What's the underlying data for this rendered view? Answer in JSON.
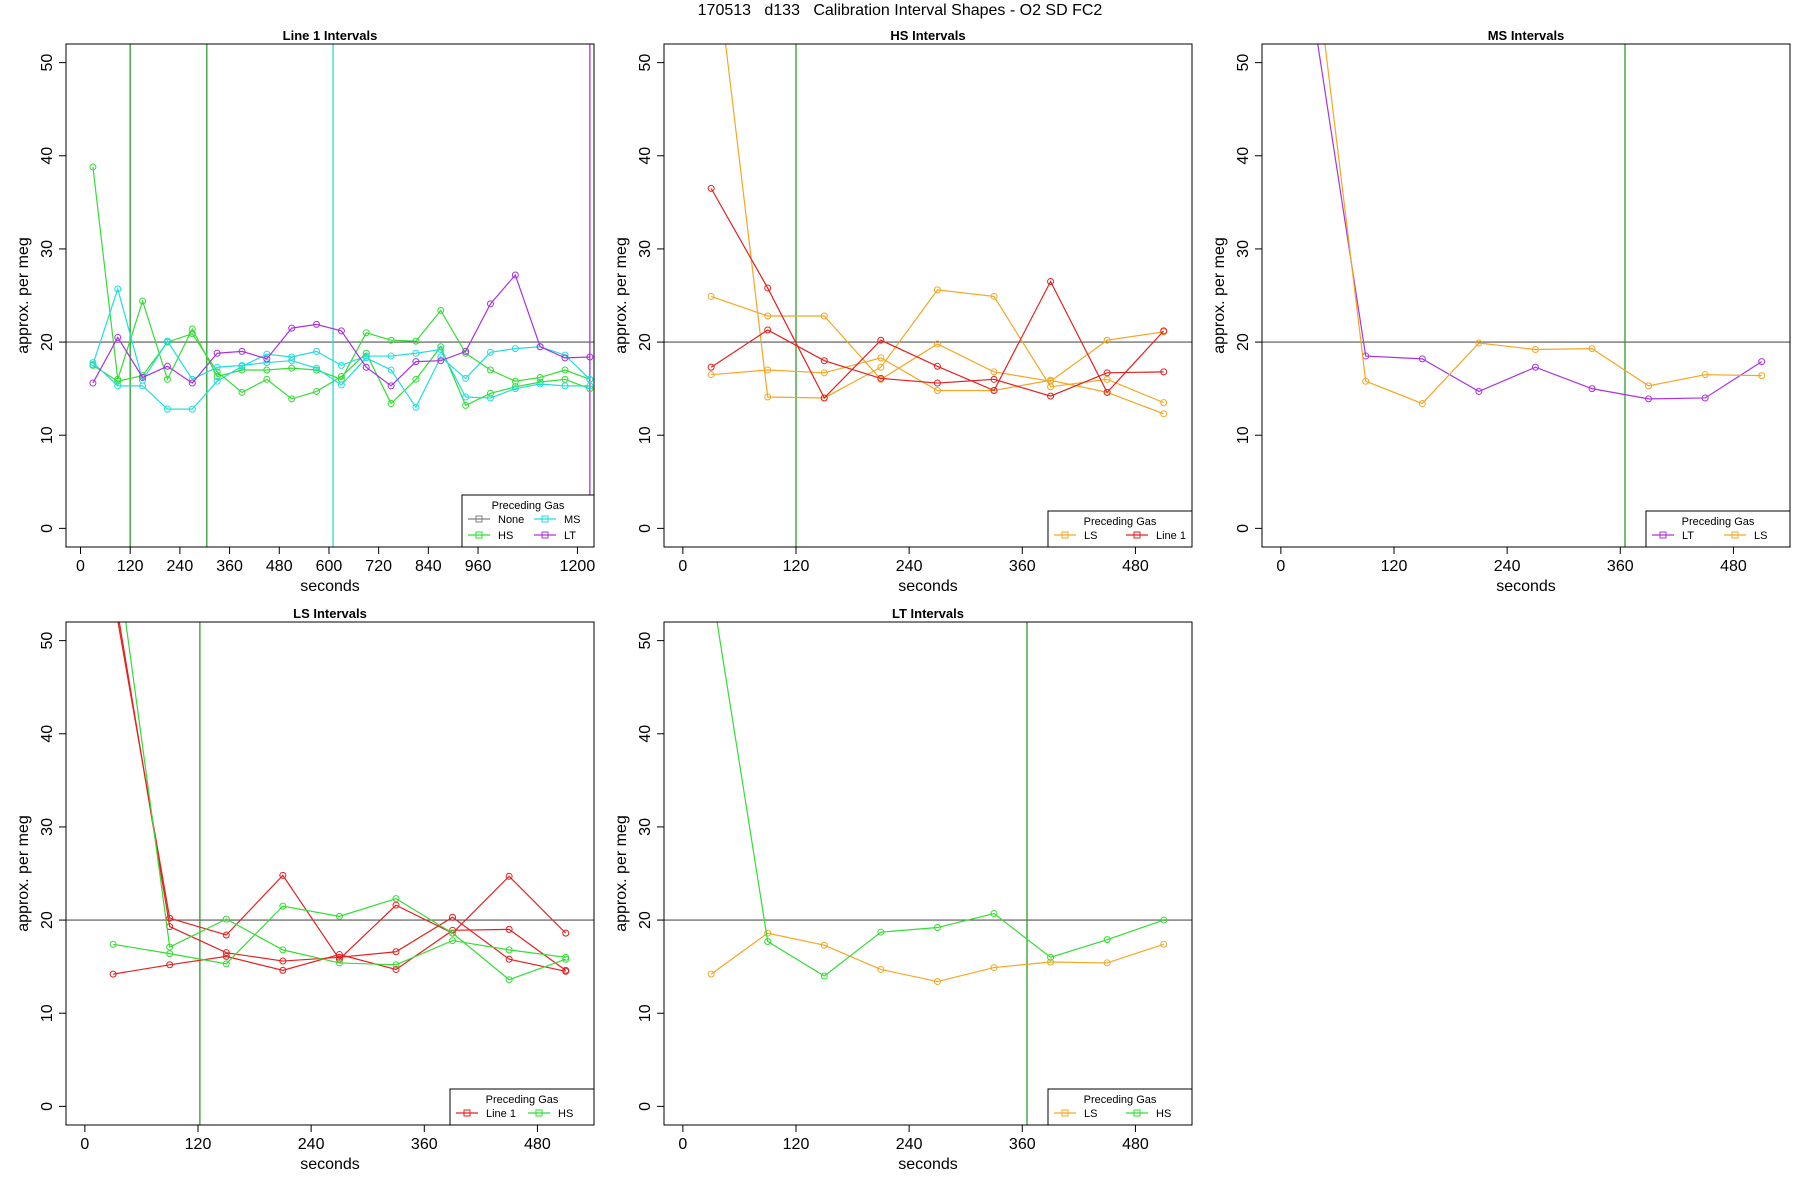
{
  "title": "170513   d133   Calibration Interval Shapes - O2 SD FC2",
  "colors": {
    "None": "#808080",
    "HS": "#33dd33",
    "MS": "#22dddd",
    "LT": "#aa33dd",
    "LS": "#f5a623",
    "Line 1": "#e62020",
    "ref": "#000000"
  },
  "chart_data": [
    {
      "type": "line",
      "title": "Line 1 Intervals",
      "xlabel": "seconds",
      "ylabel": "approx. per meg",
      "xlim": [
        -35,
        1240
      ],
      "ylim": [
        -2,
        52
      ],
      "xticks": [
        0,
        120,
        240,
        360,
        480,
        600,
        720,
        840,
        960,
        1200
      ],
      "yticks": [
        0,
        10,
        20,
        30,
        40,
        50
      ],
      "hline": 20,
      "vlines": [
        {
          "x": 120,
          "gas": "HS"
        },
        {
          "x": 305,
          "gas": "HS"
        },
        {
          "x": 610,
          "gas": "MS"
        },
        {
          "x": 1230,
          "gas": "LT"
        }
      ],
      "legend": {
        "title": "Preceding Gas",
        "entries": [
          "None",
          "MS",
          "HS",
          "LT"
        ],
        "cols": 2
      },
      "series": [
        {
          "name": "HS",
          "x": [
            30,
            90,
            150,
            210,
            270,
            330,
            390,
            450,
            510,
            570,
            630,
            690,
            750,
            810,
            870,
            930,
            990,
            1050,
            1110,
            1170,
            1230
          ],
          "y": [
            38.8,
            16.0,
            24.4,
            16.0,
            21.4,
            16.3,
            17.0,
            17.0,
            17.2,
            17.0,
            16.0,
            21.0,
            20.2,
            20.1,
            23.4,
            18.8,
            17.0,
            15.8,
            16.2,
            17.0,
            16.0
          ]
        },
        {
          "name": "HS",
          "x": [
            30,
            90,
            150,
            210,
            270,
            330,
            390,
            450,
            510,
            570,
            630,
            690,
            750,
            810,
            870,
            930,
            990,
            1050,
            1110,
            1170,
            1230
          ],
          "y": [
            17.5,
            15.8,
            16.4,
            20.0,
            20.9,
            16.8,
            14.6,
            16.0,
            13.9,
            14.7,
            16.3,
            18.8,
            13.4,
            16.0,
            19.5,
            13.2,
            14.5,
            15.2,
            15.7,
            16.0,
            15.0
          ]
        },
        {
          "name": "MS",
          "x": [
            30,
            90,
            150,
            210,
            270,
            330,
            390,
            450,
            510,
            570,
            630,
            690,
            750,
            810,
            870,
            930,
            990,
            1050,
            1110,
            1170,
            1230
          ],
          "y": [
            17.6,
            25.7,
            15.9,
            20.1,
            16.0,
            17.3,
            17.5,
            17.8,
            18.0,
            17.2,
            15.4,
            18.3,
            17.0,
            13.0,
            18.4,
            16.1,
            18.9,
            19.3,
            19.5,
            18.6,
            16.0
          ]
        },
        {
          "name": "MS",
          "x": [
            30,
            90,
            150,
            210,
            270,
            330,
            390,
            450,
            510,
            570,
            630,
            690,
            750,
            810,
            870,
            930,
            990,
            1050,
            1110,
            1170,
            1230
          ],
          "y": [
            17.8,
            15.3,
            15.3,
            12.8,
            12.8,
            15.8,
            17.4,
            18.7,
            18.4,
            19.0,
            17.5,
            18.5,
            18.5,
            18.8,
            19.2,
            14.1,
            14.0,
            15.0,
            15.5,
            15.3,
            15.3
          ]
        },
        {
          "name": "LT",
          "x": [
            30,
            90,
            150,
            210,
            270,
            330,
            390,
            450,
            510,
            570,
            630,
            690,
            750,
            810,
            870,
            930,
            990,
            1050,
            1110,
            1170,
            1230
          ],
          "y": [
            15.6,
            20.5,
            16.2,
            17.4,
            15.6,
            18.8,
            19.0,
            18.2,
            21.5,
            21.9,
            21.2,
            17.3,
            15.3,
            17.9,
            18.0,
            19.0,
            24.1,
            27.2,
            19.5,
            18.3,
            18.4
          ]
        }
      ]
    },
    {
      "type": "line",
      "title": "HS Intervals",
      "xlabel": "seconds",
      "ylabel": "approx. per meg",
      "xlim": [
        -20,
        540
      ],
      "ylim": [
        -2,
        52
      ],
      "xticks": [
        0,
        120,
        240,
        360,
        480
      ],
      "yticks": [
        0,
        10,
        20,
        30,
        40,
        50
      ],
      "hline": 20,
      "vlines": [
        {
          "x": 120,
          "gas": "HS"
        }
      ],
      "legend": {
        "title": "Preceding Gas",
        "entries": [
          "LS",
          "Line 1"
        ],
        "cols": 2
      },
      "series": [
        {
          "name": "LS",
          "x": [
            30,
            90,
            150,
            210,
            270,
            330,
            390,
            450,
            510
          ],
          "y": [
            65,
            14.1,
            14.0,
            17.3,
            25.6,
            24.9,
            15.2,
            16.0,
            13.5
          ]
        },
        {
          "name": "LS",
          "x": [
            30,
            90,
            150,
            210,
            270,
            330,
            390,
            450,
            510
          ],
          "y": [
            24.9,
            22.8,
            22.8,
            16.0,
            19.8,
            16.8,
            15.8,
            20.2,
            21.1
          ]
        },
        {
          "name": "LS",
          "x": [
            30,
            90,
            150,
            210,
            270,
            330,
            390,
            450,
            510
          ],
          "y": [
            16.5,
            17.0,
            16.7,
            18.3,
            14.8,
            14.8,
            15.9,
            14.6,
            12.3
          ]
        },
        {
          "name": "Line 1",
          "x": [
            30,
            90,
            150,
            210,
            270,
            330,
            390,
            450,
            510
          ],
          "y": [
            36.5,
            25.8,
            14.0,
            20.2,
            17.4,
            14.8,
            26.5,
            14.6,
            21.2
          ]
        },
        {
          "name": "Line 1",
          "x": [
            30,
            90,
            150,
            210,
            270,
            330,
            390,
            450,
            510
          ],
          "y": [
            17.3,
            21.3,
            18.0,
            16.1,
            15.6,
            16.0,
            14.2,
            16.7,
            16.8
          ]
        }
      ]
    },
    {
      "type": "line",
      "title": "MS Intervals",
      "xlabel": "seconds",
      "ylabel": "approx. per meg",
      "xlim": [
        -20,
        540
      ],
      "ylim": [
        -2,
        52
      ],
      "xticks": [
        0,
        120,
        240,
        360,
        480
      ],
      "yticks": [
        0,
        10,
        20,
        30,
        40,
        50
      ],
      "hline": 20,
      "vlines": [
        {
          "x": 365,
          "gas": "HS"
        }
      ],
      "legend": {
        "title": "Preceding Gas",
        "entries": [
          "LT",
          "LS"
        ],
        "cols": 2
      },
      "series": [
        {
          "name": "LT",
          "x": [
            30,
            90,
            150,
            210,
            270,
            330,
            390,
            450,
            510
          ],
          "y": [
            58,
            18.5,
            18.2,
            14.7,
            17.3,
            15.0,
            13.9,
            14.0,
            17.9
          ]
        },
        {
          "name": "LS",
          "x": [
            30,
            90,
            150,
            210,
            270,
            330,
            390,
            450,
            510
          ],
          "y": [
            66,
            15.8,
            13.4,
            19.9,
            19.2,
            19.3,
            15.3,
            16.5,
            16.4
          ]
        }
      ]
    },
    {
      "type": "line",
      "title": "LS Intervals",
      "xlabel": "seconds",
      "ylabel": "approx. per meg",
      "xlim": [
        -20,
        540
      ],
      "ylim": [
        -2,
        52
      ],
      "xticks": [
        0,
        120,
        240,
        360,
        480
      ],
      "yticks": [
        0,
        10,
        20,
        30,
        40,
        50
      ],
      "hline": 20,
      "vlines": [
        {
          "x": 122,
          "gas": "HS"
        }
      ],
      "legend": {
        "title": "Preceding Gas",
        "entries": [
          "Line 1",
          "HS"
        ],
        "cols": 2
      },
      "series": [
        {
          "name": "Line 1",
          "x": [
            30,
            90,
            150,
            210,
            270,
            330,
            390,
            450,
            510
          ],
          "y": [
            55,
            20.2,
            18.4,
            24.8,
            15.8,
            21.6,
            18.6,
            24.7,
            18.6
          ]
        },
        {
          "name": "Line 1",
          "x": [
            30,
            90,
            150,
            210,
            270,
            330,
            390,
            450,
            510
          ],
          "y": [
            56,
            19.3,
            16.5,
            15.6,
            16.0,
            16.6,
            20.3,
            15.8,
            14.5
          ]
        },
        {
          "name": "Line 1",
          "x": [
            30,
            90,
            150,
            210,
            270,
            330,
            390,
            450,
            510
          ],
          "y": [
            14.2,
            15.2,
            16.1,
            14.6,
            16.3,
            14.7,
            18.9,
            19.0,
            14.6
          ]
        },
        {
          "name": "HS",
          "x": [
            30,
            90,
            150,
            210,
            270,
            330,
            390,
            450,
            510
          ],
          "y": [
            62,
            17.1,
            20.1,
            16.8,
            15.4,
            15.2,
            17.8,
            16.8,
            16.0
          ]
        },
        {
          "name": "HS",
          "x": [
            30,
            90,
            150,
            210,
            270,
            330,
            390,
            450,
            510
          ],
          "y": [
            17.4,
            16.4,
            15.3,
            21.5,
            20.4,
            22.3,
            18.6,
            13.6,
            15.8
          ]
        }
      ]
    },
    {
      "type": "line",
      "title": "LT Intervals",
      "xlabel": "seconds",
      "ylabel": "approx. per meg",
      "xlim": [
        -20,
        540
      ],
      "ylim": [
        -2,
        52
      ],
      "xticks": [
        0,
        120,
        240,
        360,
        480
      ],
      "yticks": [
        0,
        10,
        20,
        30,
        40,
        50
      ],
      "hline": 20,
      "vlines": [
        {
          "x": 365,
          "gas": "HS"
        }
      ],
      "legend": {
        "title": "Preceding Gas",
        "entries": [
          "LS",
          "HS"
        ],
        "cols": 2
      },
      "series": [
        {
          "name": "LS",
          "x": [
            30,
            90,
            150,
            210,
            270,
            330,
            390,
            450,
            510
          ],
          "y": [
            14.2,
            18.6,
            17.3,
            14.7,
            13.4,
            14.9,
            15.5,
            15.4,
            17.4
          ]
        },
        {
          "name": "HS",
          "x": [
            30,
            90,
            150,
            210,
            270,
            330,
            390,
            450,
            510
          ],
          "y": [
            56,
            17.7,
            14.0,
            18.7,
            19.2,
            20.7,
            16.0,
            17.9,
            20.0
          ]
        }
      ]
    }
  ]
}
